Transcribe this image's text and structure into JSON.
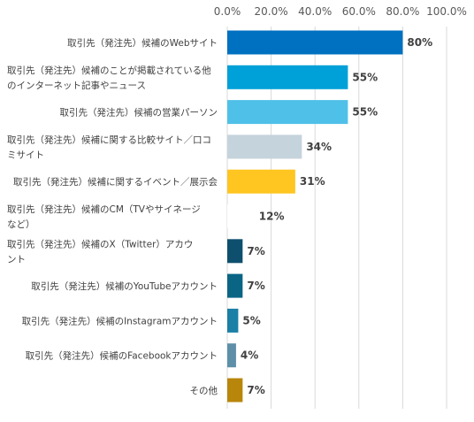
{
  "chart_data": {
    "type": "bar",
    "orientation": "horizontal",
    "categories": [
      "取引先（発注先）候補のWebサイト",
      "取引先（発注先）候補のことが掲載されている他のインターネット記事やニュース",
      "取引先（発注先）候補の営業パーソン",
      "取引先（発注先）候補に関する比較サイト／口コミサイト",
      "取引先（発注先）候補に関するイベント／展示会",
      "取引先（発注先）候補のCM（TVやサイネージなど）",
      "取引先（発注先）候補のX（Twitter）アカウント",
      "取引先（発注先）候補のYouTubeアカウント",
      "取引先（発注先）候補のInstagramアカウント",
      "取引先（発注先）候補のFacebookアカウント",
      "その他"
    ],
    "category_lines": [
      [
        "取引先（発注先）候補のWebサイト"
      ],
      [
        "取引先（発注先）候補のことが掲載されている他",
        "のインターネット記事やニュース"
      ],
      [
        "取引先（発注先）候補の営業パーソン"
      ],
      [
        "取引先（発注先）候補に関する比較サイト／口コ",
        "ミサイト"
      ],
      [
        "取引先（発注先）候補に関するイベント／展示会"
      ],
      [
        "取引先（発注先）候補のCM（TVやサイネージ",
        "など）"
      ],
      [
        "取引先（発注先）候補のX（Twitter）アカウ",
        "ント"
      ],
      [
        "取引先（発注先）候補のYouTubeアカウント"
      ],
      [
        "取引先（発注先）候補のInstagramアカウント"
      ],
      [
        "取引先（発注先）候補のFacebookアカウント"
      ],
      [
        "その他"
      ]
    ],
    "values": [
      80,
      55,
      55,
      34,
      31,
      12,
      7,
      7,
      5,
      4,
      7
    ],
    "value_labels": [
      "80%",
      "55%",
      "55%",
      "34%",
      "31%",
      "12%",
      "7%",
      "7%",
      "5%",
      "4%",
      "7%"
    ],
    "colors": [
      "#0070C0",
      "#00A0D8",
      "#4FC0E8",
      "#C5D3DC",
      "#FFC520",
      "#FFFFFF",
      "#0E4F6E",
      "#0A6585",
      "#1C7FA6",
      "#5E8FA8",
      "#B8860B"
    ],
    "xlim": [
      0,
      100
    ],
    "xticks": [
      0,
      20,
      40,
      60,
      80,
      100
    ],
    "xtick_labels": [
      "0.0%",
      "20.0%",
      "40.0%",
      "60.0%",
      "80.0%",
      "100.0%"
    ],
    "tick_position": "top",
    "grid": true,
    "title": "",
    "xlabel": "",
    "ylabel": ""
  }
}
